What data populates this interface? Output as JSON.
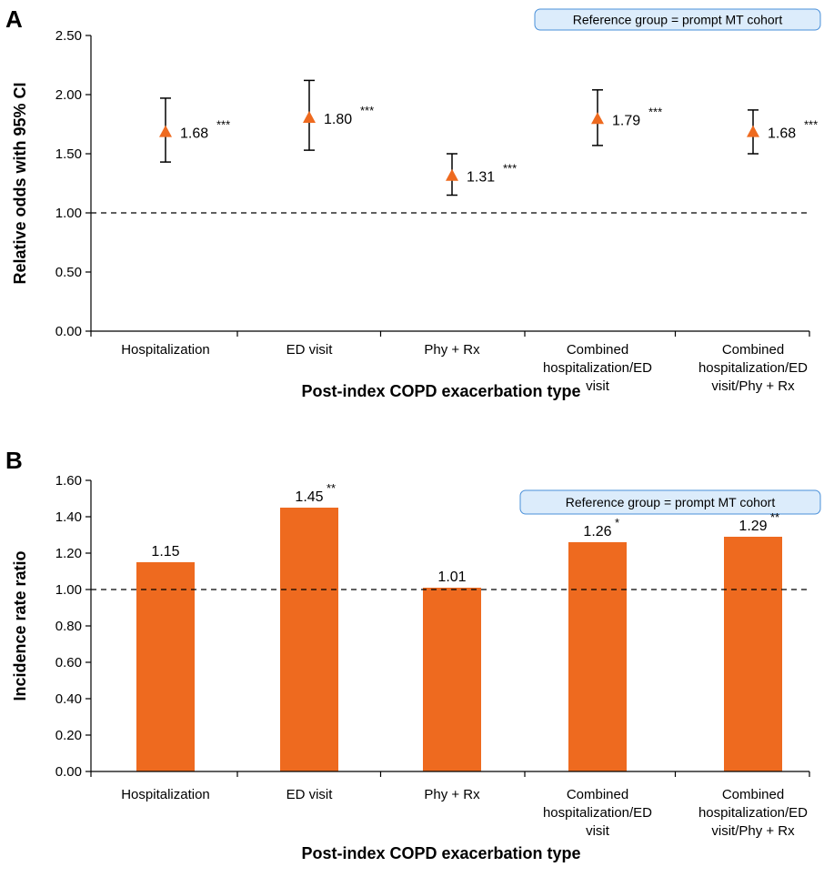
{
  "chart_data": [
    {
      "panel": "A",
      "type": "scatter",
      "title": "",
      "ylabel": "Relative odds with 95% CI",
      "xlabel": "Post-index COPD exacerbation type",
      "reference_note": "Reference group = prompt MT cohort",
      "categories": [
        [
          "Hospitalization"
        ],
        [
          "ED visit"
        ],
        [
          "Phy + Rx"
        ],
        [
          "Combined",
          "hospitalization/ED",
          "visit"
        ],
        [
          "Combined",
          "hospitalization/ED",
          "visit/Phy + Rx"
        ]
      ],
      "values": [
        1.68,
        1.8,
        1.31,
        1.79,
        1.68
      ],
      "ci_lower": [
        1.43,
        1.53,
        1.15,
        1.57,
        1.5
      ],
      "ci_upper": [
        1.97,
        2.12,
        1.5,
        2.04,
        1.87
      ],
      "value_labels": [
        "1.68",
        "1.80",
        "1.31",
        "1.79",
        "1.68"
      ],
      "significance": [
        "***",
        "***",
        "***",
        "***",
        "***"
      ],
      "yticks": [
        "0.00",
        "0.50",
        "1.00",
        "1.50",
        "2.00",
        "2.50"
      ],
      "ylim": [
        0,
        2.5
      ],
      "reference_line": 1.0,
      "marker_color": "#ee6a1f"
    },
    {
      "panel": "B",
      "type": "bar",
      "title": "",
      "ylabel": "Incidence rate ratio",
      "xlabel": "Post-index COPD exacerbation type",
      "reference_note": "Reference group = prompt MT cohort",
      "categories": [
        [
          "Hospitalization"
        ],
        [
          "ED visit"
        ],
        [
          "Phy + Rx"
        ],
        [
          "Combined",
          "hospitalization/ED",
          "visit"
        ],
        [
          "Combined",
          "hospitalization/ED",
          "visit/Phy + Rx"
        ]
      ],
      "values": [
        1.15,
        1.45,
        1.01,
        1.26,
        1.29
      ],
      "value_labels": [
        "1.15",
        "1.45",
        "1.01",
        "1.26",
        "1.29"
      ],
      "significance": [
        "",
        "**",
        "",
        "*",
        "**"
      ],
      "yticks": [
        "0.00",
        "0.20",
        "0.40",
        "0.60",
        "0.80",
        "1.00",
        "1.20",
        "1.40",
        "1.60"
      ],
      "ylim": [
        0,
        1.6
      ],
      "reference_line": 1.0,
      "bar_color": "#ee6a1f"
    }
  ]
}
